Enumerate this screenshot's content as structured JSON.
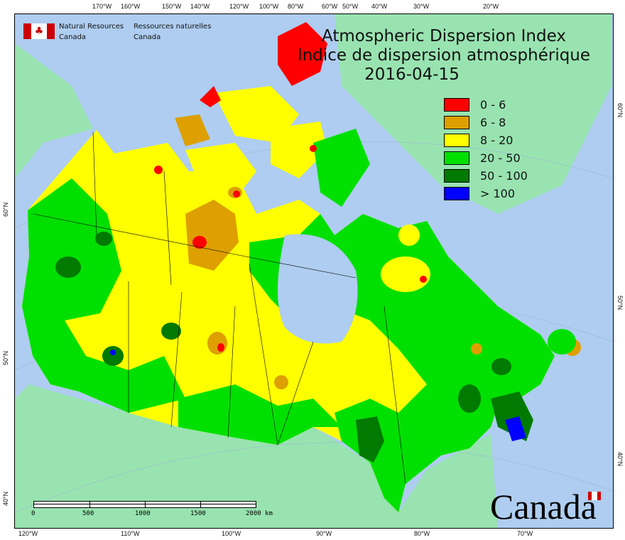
{
  "map": {
    "title_en": "Atmospheric Dispersion Index",
    "title_fr": "Indice de dispersion atmosphérique",
    "date": "2016-04-15",
    "agency_en": [
      "Natural Resources",
      "Canada"
    ],
    "agency_fr": [
      "Ressources naturelles",
      "Canada"
    ],
    "wordmark": "Canada",
    "top_longitudes": [
      "170°W",
      "160°W",
      "150°W",
      "140°W",
      "120°W",
      "100°W",
      "80°W",
      "60°W",
      "50°W",
      "40°W",
      "30°W",
      "20°W"
    ],
    "bottom_longitudes": [
      "120°W",
      "110°W",
      "100°W",
      "90°W",
      "80°W",
      "70°W"
    ],
    "left_latitudes": [
      "60°N",
      "50°N",
      "40°N"
    ],
    "right_latitudes": [
      "60°N",
      "50°N",
      "40°N"
    ],
    "legend": [
      {
        "label": "0 - 6",
        "color": "#ff0000"
      },
      {
        "label": "6 - 8",
        "color": "#dda000"
      },
      {
        "label": "8 - 20",
        "color": "#ffff00"
      },
      {
        "label": "20 - 50",
        "color": "#00e000"
      },
      {
        "label": "50 - 100",
        "color": "#007a00"
      },
      {
        "label": "> 100",
        "color": "#0000ff"
      }
    ],
    "scale": {
      "ticks": [
        "0",
        "500",
        "1000",
        "1500",
        "2000 km"
      ]
    },
    "colors": {
      "ocean": "#aecdf0",
      "land": "#98e3b0"
    }
  }
}
